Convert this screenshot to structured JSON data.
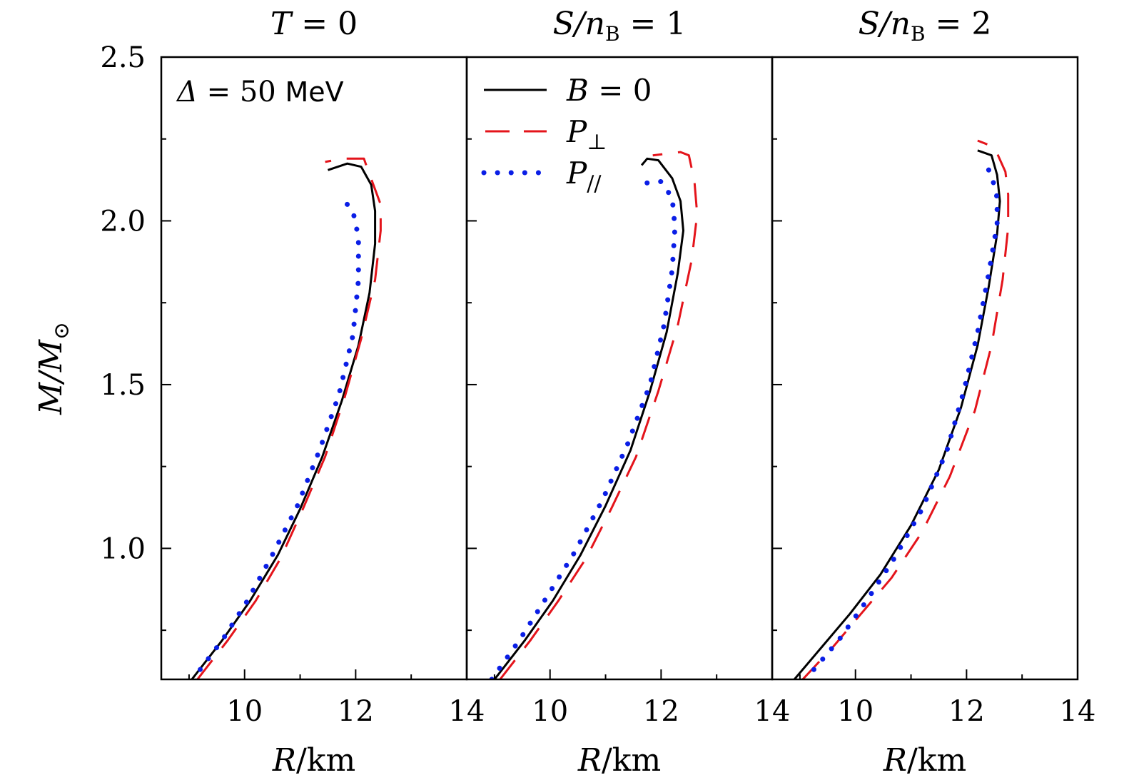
{
  "chart_data": {
    "type": "line",
    "layout": "three side-by-side panels, shared y-axis",
    "y_axis": {
      "label": "M/M⊙",
      "label_parts": {
        "main": "M/M",
        "sub": "⊙"
      },
      "ylim": [
        0.6,
        2.5
      ],
      "major_ticks": [
        1.0,
        1.5,
        2.0,
        2.5
      ],
      "major_tick_labels": [
        "1.0",
        "1.5",
        "2.0",
        "2.5"
      ],
      "minor_ticks": [
        0.75,
        1.25,
        1.75,
        2.25
      ]
    },
    "x_axis": {
      "label": "R/km",
      "label_parts": {
        "italic": "R",
        "rest": "/km"
      },
      "xlim": [
        8.5,
        14
      ],
      "major_ticks": [
        10,
        12,
        14
      ],
      "major_tick_labels": [
        "10",
        "12",
        "14"
      ],
      "minor_ticks": [
        9,
        11,
        13
      ]
    },
    "annotation": {
      "text": "Δ = 50 MeV",
      "parts": {
        "sym": "Δ",
        "eq": " = 50 ",
        "unit": "MeV"
      },
      "panel": 0,
      "placement": "top-left"
    },
    "legend": {
      "placement": "top-left of middle panel",
      "entries": [
        {
          "label": "B = 0",
          "parts": {
            "main": "B",
            "rest": " = 0",
            "sub": ""
          },
          "style": "solid",
          "color": "#000000"
        },
        {
          "label": "P⊥",
          "parts": {
            "main": "P",
            "rest": "",
            "sub": "⊥"
          },
          "style": "dashed",
          "color": "#e4141b"
        },
        {
          "label": "P//",
          "parts": {
            "main": "P",
            "rest": "",
            "sub": "//"
          },
          "style": "dotted",
          "color": "#0a1ee6"
        }
      ]
    },
    "panels": [
      {
        "title": "T = 0",
        "title_parts": {
          "a": "T",
          "sub": "",
          "b": " = 0"
        },
        "series": [
          {
            "name": "B = 0",
            "style": "solid",
            "color": "#000000",
            "points": [
              [
                9.05,
                0.6
              ],
              [
                9.6,
                0.72
              ],
              [
                10.1,
                0.84
              ],
              [
                10.6,
                0.98
              ],
              [
                11.0,
                1.12
              ],
              [
                11.4,
                1.28
              ],
              [
                11.75,
                1.45
              ],
              [
                12.05,
                1.62
              ],
              [
                12.25,
                1.78
              ],
              [
                12.35,
                1.93
              ],
              [
                12.35,
                2.03
              ],
              [
                12.28,
                2.11
              ],
              [
                12.1,
                2.165
              ],
              [
                11.85,
                2.175
              ],
              [
                11.5,
                2.155
              ]
            ]
          },
          {
            "name": "P⊥",
            "style": "dashed",
            "color": "#e4141b",
            "points": [
              [
                9.15,
                0.6
              ],
              [
                9.7,
                0.72
              ],
              [
                10.2,
                0.84
              ],
              [
                10.65,
                0.97
              ],
              [
                11.05,
                1.12
              ],
              [
                11.45,
                1.28
              ],
              [
                11.8,
                1.46
              ],
              [
                12.1,
                1.64
              ],
              [
                12.35,
                1.82
              ],
              [
                12.45,
                1.97
              ],
              [
                12.45,
                2.05
              ],
              [
                12.2,
                2.165
              ],
              [
                12.15,
                2.19
              ],
              [
                11.75,
                2.19
              ],
              [
                11.45,
                2.18
              ]
            ]
          },
          {
            "name": "P//",
            "style": "dotted",
            "color": "#0a1ee6",
            "points": [
              [
                9.2,
                0.63
              ],
              [
                9.6,
                0.72
              ],
              [
                10.05,
                0.84
              ],
              [
                10.5,
                0.98
              ],
              [
                10.95,
                1.13
              ],
              [
                11.35,
                1.3
              ],
              [
                11.7,
                1.47
              ],
              [
                11.95,
                1.65
              ],
              [
                12.05,
                1.82
              ],
              [
                12.05,
                1.95
              ],
              [
                11.95,
                2.03
              ],
              [
                11.7,
                2.08
              ]
            ]
          }
        ]
      },
      {
        "title": "S/nB = 1",
        "title_parts": {
          "a": "S/n",
          "sub": "B",
          "b": " = 1"
        },
        "series": [
          {
            "name": "B = 0",
            "style": "solid",
            "color": "#000000",
            "points": [
              [
                9.0,
                0.6
              ],
              [
                9.55,
                0.72
              ],
              [
                10.05,
                0.84
              ],
              [
                10.55,
                0.98
              ],
              [
                11.0,
                1.13
              ],
              [
                11.45,
                1.3
              ],
              [
                11.8,
                1.48
              ],
              [
                12.1,
                1.66
              ],
              [
                12.3,
                1.84
              ],
              [
                12.4,
                1.97
              ],
              [
                12.35,
                2.06
              ],
              [
                12.2,
                2.13
              ],
              [
                11.95,
                2.185
              ],
              [
                11.75,
                2.19
              ],
              [
                11.65,
                2.17
              ]
            ]
          },
          {
            "name": "P⊥",
            "style": "dashed",
            "color": "#e4141b",
            "points": [
              [
                9.1,
                0.6
              ],
              [
                9.65,
                0.72
              ],
              [
                10.15,
                0.84
              ],
              [
                10.65,
                0.97
              ],
              [
                11.1,
                1.12
              ],
              [
                11.55,
                1.28
              ],
              [
                11.95,
                1.48
              ],
              [
                12.3,
                1.68
              ],
              [
                12.55,
                1.88
              ],
              [
                12.65,
                2.02
              ],
              [
                12.6,
                2.12
              ],
              [
                12.5,
                2.2
              ],
              [
                12.35,
                2.21
              ],
              [
                11.85,
                2.2
              ]
            ]
          },
          {
            "name": "P//",
            "style": "dotted",
            "color": "#0a1ee6",
            "points": [
              [
                8.95,
                0.6
              ],
              [
                9.45,
                0.72
              ],
              [
                9.9,
                0.84
              ],
              [
                10.45,
                0.99
              ],
              [
                10.95,
                1.15
              ],
              [
                11.4,
                1.32
              ],
              [
                11.8,
                1.5
              ],
              [
                12.05,
                1.68
              ],
              [
                12.2,
                1.85
              ],
              [
                12.25,
                1.98
              ],
              [
                12.2,
                2.07
              ],
              [
                12.0,
                2.12
              ],
              [
                11.7,
                2.115
              ]
            ]
          }
        ]
      },
      {
        "title": "S/nB = 2",
        "title_parts": {
          "a": "S/n",
          "sub": "B",
          "b": " = 2"
        },
        "series": [
          {
            "name": "B = 0",
            "style": "solid",
            "color": "#000000",
            "points": [
              [
                8.9,
                0.6
              ],
              [
                9.4,
                0.7
              ],
              [
                9.9,
                0.8
              ],
              [
                10.45,
                0.92
              ],
              [
                11.0,
                1.07
              ],
              [
                11.5,
                1.24
              ],
              [
                11.9,
                1.43
              ],
              [
                12.2,
                1.62
              ],
              [
                12.4,
                1.8
              ],
              [
                12.55,
                1.96
              ],
              [
                12.6,
                2.06
              ],
              [
                12.55,
                2.14
              ],
              [
                12.45,
                2.2
              ],
              [
                12.2,
                2.215
              ]
            ]
          },
          {
            "name": "P⊥",
            "style": "dashed",
            "color": "#e4141b",
            "points": [
              [
                9.05,
                0.6
              ],
              [
                9.6,
                0.7
              ],
              [
                10.1,
                0.8
              ],
              [
                10.65,
                0.91
              ],
              [
                11.2,
                1.05
              ],
              [
                11.7,
                1.22
              ],
              [
                12.15,
                1.42
              ],
              [
                12.45,
                1.62
              ],
              [
                12.65,
                1.82
              ],
              [
                12.75,
                1.98
              ],
              [
                12.75,
                2.08
              ],
              [
                12.7,
                2.15
              ],
              [
                12.5,
                2.225
              ],
              [
                12.2,
                2.245
              ]
            ]
          },
          {
            "name": "P//",
            "style": "dotted",
            "color": "#0a1ee6",
            "points": [
              [
                9.25,
                0.63
              ],
              [
                9.7,
                0.72
              ],
              [
                10.2,
                0.84
              ],
              [
                10.7,
                0.97
              ],
              [
                11.2,
                1.12
              ],
              [
                11.65,
                1.3
              ],
              [
                11.95,
                1.48
              ],
              [
                12.2,
                1.66
              ],
              [
                12.4,
                1.84
              ],
              [
                12.55,
                1.99
              ],
              [
                12.55,
                2.07
              ],
              [
                12.45,
                2.14
              ],
              [
                12.35,
                2.17
              ]
            ]
          }
        ]
      }
    ]
  }
}
